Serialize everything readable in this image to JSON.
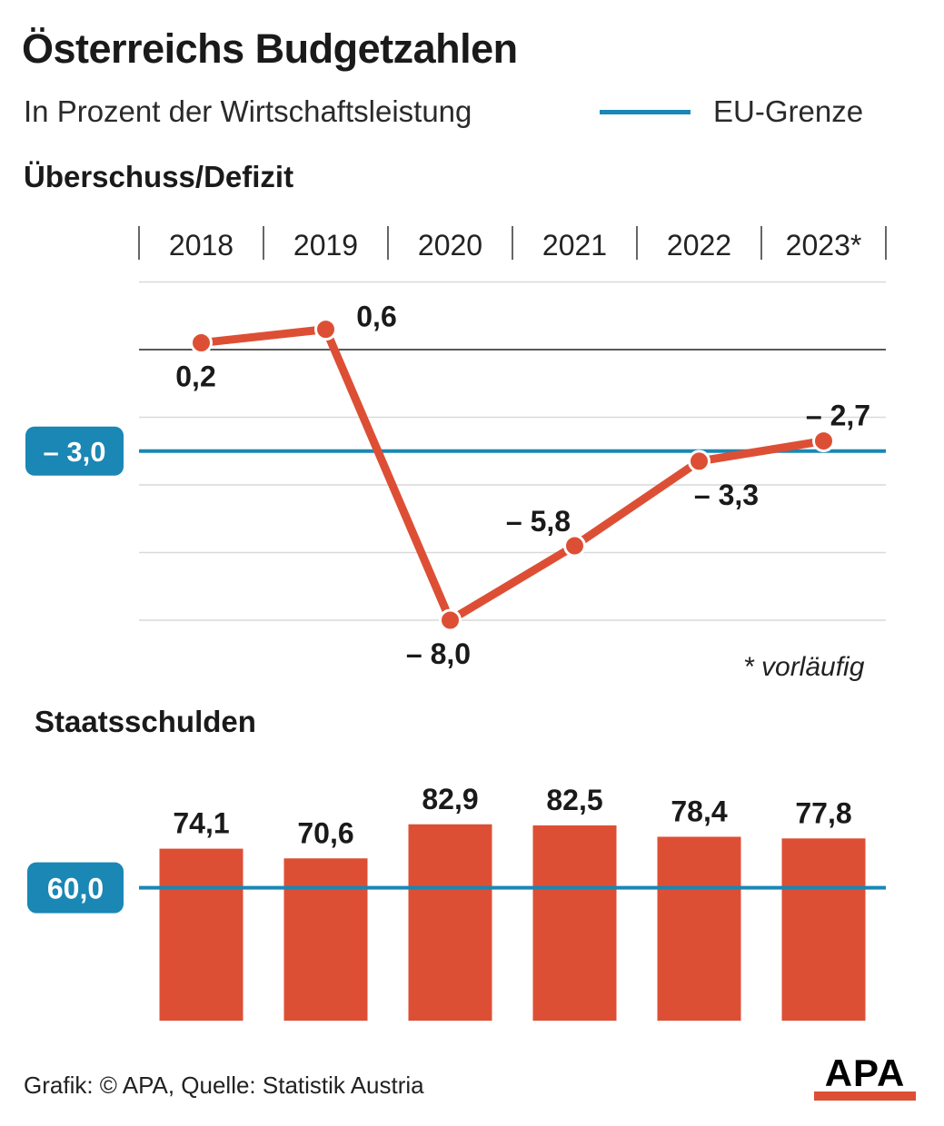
{
  "header": {
    "title": "Österreichs Budgetzahlen",
    "subtitle": "In Prozent der Wirtschaftsleistung",
    "legend_label": "EU-Grenze"
  },
  "colors": {
    "accent": "#dd4f35",
    "eu_line": "#1a87b5",
    "grid": "#d9d9d9",
    "text": "#1a1a1a"
  },
  "footnote": "* vorläufig",
  "footer": {
    "credit": "Grafik: © APA, Quelle: Statistik Austria"
  },
  "logo": {
    "text": "APA"
  },
  "chart_data": [
    {
      "type": "line",
      "title": "Überschuss/Defizit",
      "categories": [
        "2018",
        "2019",
        "2020",
        "2021",
        "2022",
        "2023*"
      ],
      "values": [
        0.2,
        0.6,
        -8.0,
        -5.8,
        -3.3,
        -2.7
      ],
      "labels": [
        "0,2",
        "0,6",
        "– 8,0",
        "– 5,8",
        "– 3,3",
        "– 2,7"
      ],
      "reference_line": {
        "value": -3.0,
        "label": "– 3,0"
      },
      "ylim": [
        -8,
        2
      ],
      "grid": true
    },
    {
      "type": "bar",
      "title": "Staatsschulden",
      "categories": [
        "2018",
        "2019",
        "2020",
        "2021",
        "2022",
        "2023*"
      ],
      "values": [
        74.1,
        70.6,
        82.9,
        82.5,
        78.4,
        77.8
      ],
      "labels": [
        "74,1",
        "70,6",
        "82,9",
        "82,5",
        "78,4",
        "77,8"
      ],
      "reference_line": {
        "value": 60.0,
        "label": "60,0"
      },
      "grid": false
    }
  ]
}
